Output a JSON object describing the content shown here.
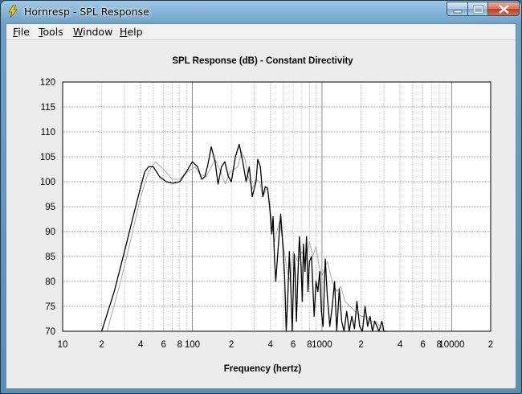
{
  "window": {
    "title": "Hornresp - SPL Response",
    "icon": "lightning-icon"
  },
  "menu": {
    "items": [
      "File",
      "Tools",
      "Window",
      "Help"
    ]
  },
  "chart_data": {
    "type": "line",
    "title": "SPL Response (dB) - Constant Directivity",
    "xlabel": "Frequency (hertz)",
    "ylabel": "",
    "xscale": "log",
    "xlim": [
      10,
      20000
    ],
    "ylim": [
      70,
      120
    ],
    "yticks": [
      70,
      75,
      80,
      85,
      90,
      95,
      100,
      105,
      110,
      115,
      120
    ],
    "xtick_labels": [
      {
        "value": 10,
        "label": "10"
      },
      {
        "value": 20,
        "label": "2"
      },
      {
        "value": 40,
        "label": "4"
      },
      {
        "value": 60,
        "label": "6"
      },
      {
        "value": 80,
        "label": "8"
      },
      {
        "value": 100,
        "label": "100"
      },
      {
        "value": 200,
        "label": "2"
      },
      {
        "value": 400,
        "label": "4"
      },
      {
        "value": 600,
        "label": "6"
      },
      {
        "value": 800,
        "label": "8"
      },
      {
        "value": 1000,
        "label": "1000"
      },
      {
        "value": 2000,
        "label": "2"
      },
      {
        "value": 4000,
        "label": "4"
      },
      {
        "value": 6000,
        "label": "6"
      },
      {
        "value": 8000,
        "label": "8"
      },
      {
        "value": 10000,
        "label": "10000"
      },
      {
        "value": 20000,
        "label": "2"
      }
    ],
    "grid": true,
    "series": [
      {
        "color": "#000000",
        "x": [
          20,
          25,
          30,
          35,
          40,
          43,
          46,
          50,
          56,
          63,
          71,
          80,
          90,
          100,
          110,
          118,
          125,
          132,
          140,
          150,
          158,
          168,
          178,
          190,
          200,
          215,
          230,
          245,
          260,
          275,
          290,
          310,
          320,
          335,
          350,
          365,
          380,
          395,
          410,
          420,
          430,
          440,
          460,
          480,
          500,
          515,
          530,
          545,
          560,
          575,
          590,
          610,
          620,
          635,
          650,
          670,
          690,
          705,
          720,
          740,
          760,
          780,
          800,
          830,
          870,
          900,
          930,
          960,
          990,
          1020,
          1060,
          1100,
          1150,
          1200,
          1250,
          1300,
          1360,
          1420,
          1480,
          1550,
          1620,
          1700,
          1780,
          1860,
          1950,
          2050,
          2150,
          2250,
          2350,
          2450,
          2550,
          2650,
          2750,
          2900,
          3000,
          3100
        ],
        "y": [
          70,
          78,
          86,
          93,
          99,
          102,
          103,
          103,
          101,
          100,
          99.7,
          100,
          102,
          104,
          103,
          100.5,
          101,
          103.5,
          107,
          104,
          99.5,
          103,
          104,
          101,
          100,
          105,
          107.5,
          104,
          100,
          103,
          97,
          100,
          104.5,
          103,
          97,
          99,
          98.7,
          95,
          89.5,
          93,
          85,
          80,
          87,
          93.5,
          87,
          81,
          70,
          77,
          86,
          79,
          70,
          85.5,
          82,
          72,
          80,
          89,
          83,
          76,
          87.5,
          82,
          89,
          78,
          84,
          85,
          73,
          80,
          78,
          82,
          74,
          71,
          84.5,
          77,
          71,
          75,
          80,
          70,
          78.5,
          72,
          70,
          74,
          70,
          73,
          70.5,
          76,
          71,
          70,
          75,
          71,
          73,
          70,
          72,
          71,
          70,
          72,
          70,
          70
        ]
      },
      {
        "color": "#a8a8a8",
        "x": [
          22,
          28,
          34,
          40,
          46,
          52,
          60,
          70,
          80,
          92,
          105,
          115,
          128,
          140,
          150,
          165,
          180,
          195,
          210,
          225,
          240,
          255,
          270,
          290,
          310,
          330,
          350,
          380,
          400,
          430,
          470,
          500,
          540,
          570,
          600,
          650,
          700,
          750,
          800,
          850,
          900,
          950,
          1000,
          1100,
          1200,
          1300,
          1400,
          1500,
          1650,
          1800,
          2000,
          2200,
          2400,
          2600,
          2800,
          3000
        ],
        "y": [
          70,
          80,
          89,
          97,
          102,
          104,
          102.5,
          100.5,
          100.5,
          102,
          103,
          101.5,
          101,
          103,
          104.5,
          102,
          99.5,
          102,
          102.5,
          103,
          106,
          104.5,
          101,
          98.5,
          100.5,
          100,
          97,
          99,
          94,
          88,
          92,
          88,
          82,
          80,
          86,
          84,
          86,
          84,
          88,
          85,
          87,
          83,
          81,
          84,
          80,
          78,
          79,
          76,
          75,
          74,
          73,
          73,
          72,
          72,
          71,
          70
        ]
      }
    ]
  }
}
